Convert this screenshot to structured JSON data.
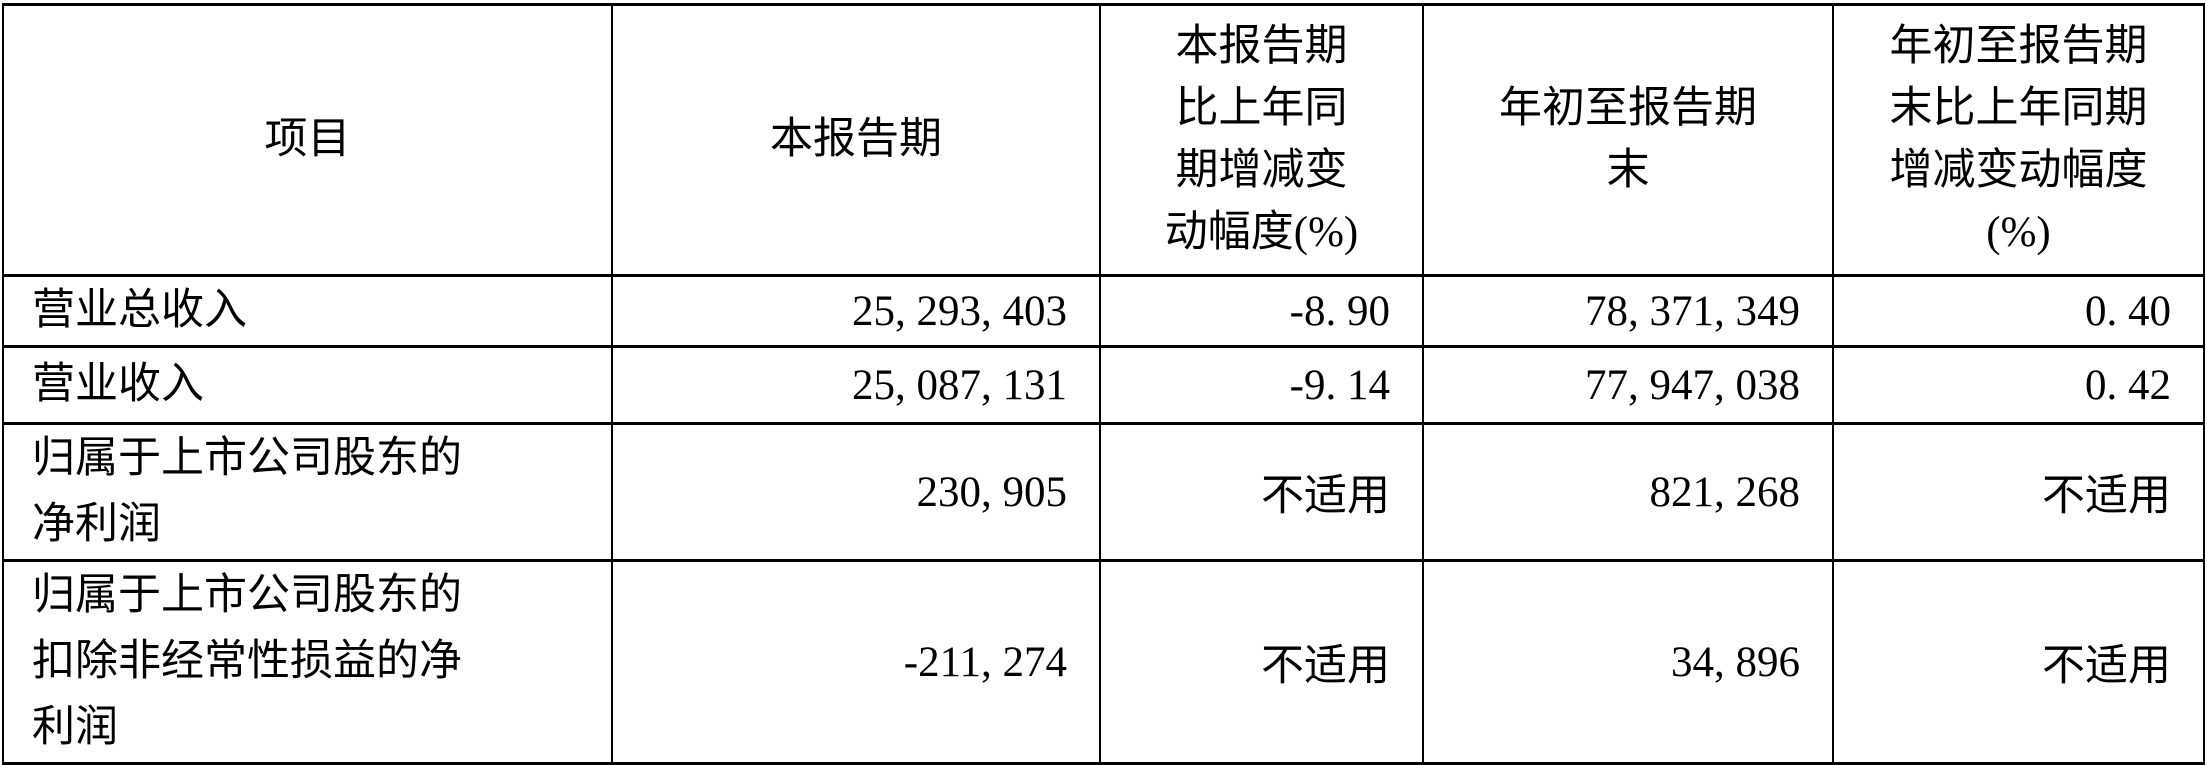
{
  "page": {
    "background_color": "#ffffff",
    "text_color": "#000000",
    "border_color": "#000000"
  },
  "table": {
    "headers": [
      "项目",
      "本报告期",
      "本报告期\n比上年同\n期增减变\n动幅度(%)",
      "年初至报告期\n末",
      "年初至报告期\n末比上年同期\n增减变动幅度\n(%)"
    ],
    "rows": [
      {
        "cells": [
          "营业总收入",
          "25, 293, 403",
          "-8. 90",
          "78, 371, 349",
          "0. 40"
        ]
      },
      {
        "cells": [
          "营业收入",
          "25, 087, 131",
          "-9. 14",
          "77, 947, 038",
          "0. 42"
        ]
      },
      {
        "cells": [
          "归属于上市公司股东的\n净利润",
          "230, 905",
          "不适用",
          "821, 268",
          "不适用"
        ]
      },
      {
        "cells": [
          "归属于上市公司股东的\n扣除非经常性损益的净\n利润",
          "-211, 274",
          "不适用",
          "34, 896",
          "不适用"
        ]
      }
    ]
  }
}
